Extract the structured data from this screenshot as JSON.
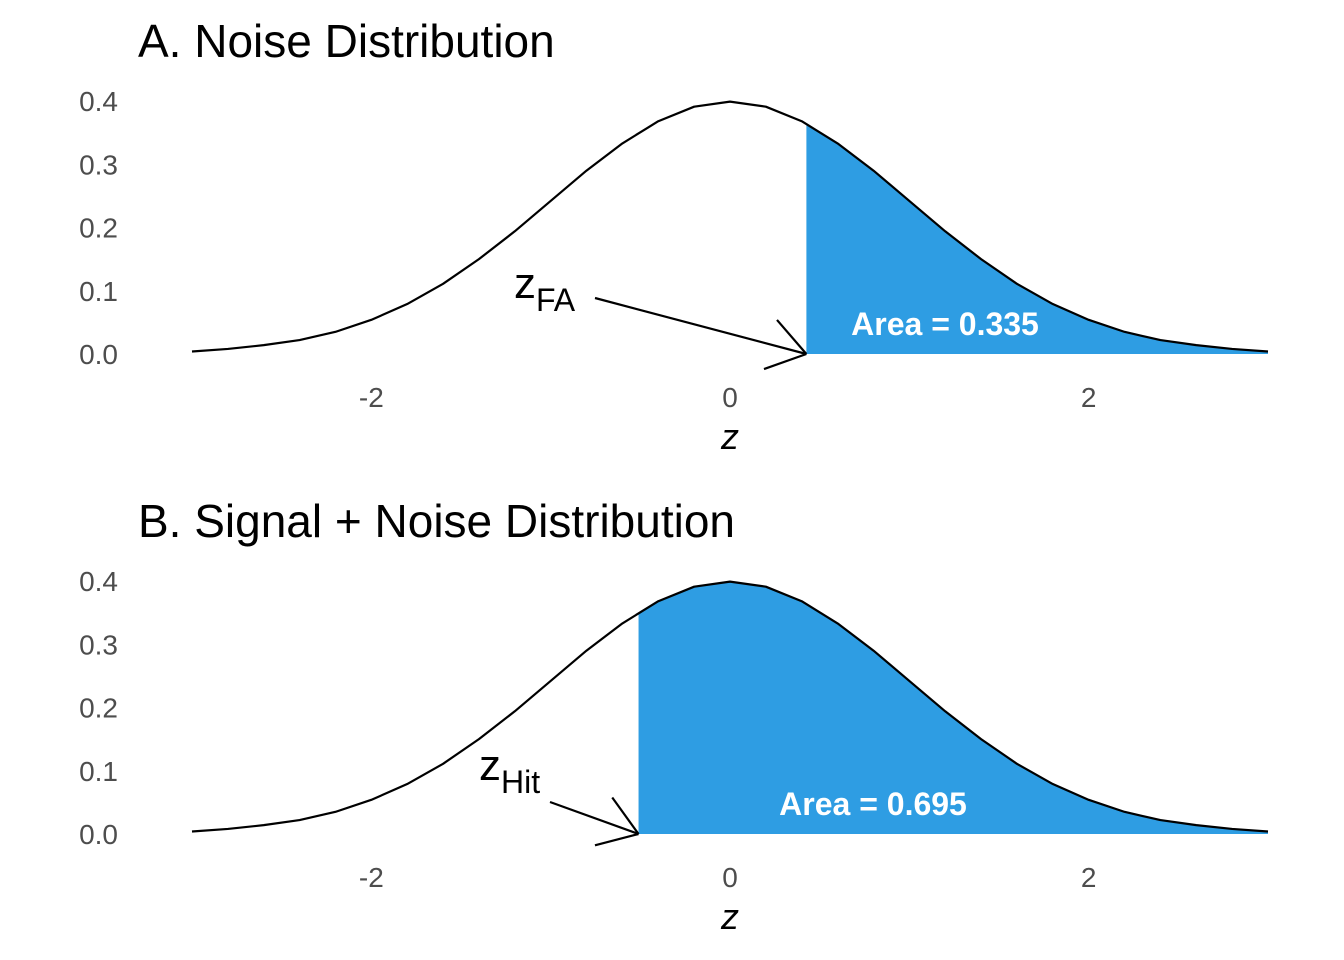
{
  "chart_data": [
    {
      "type": "area",
      "title": "A. Noise Distribution",
      "x_label": "z",
      "x": [
        -3,
        -2.8,
        -2.6,
        -2.4,
        -2.2,
        -2,
        -1.8,
        -1.6,
        -1.4,
        -1.2,
        -1,
        -0.8,
        -0.6,
        -0.4,
        -0.2,
        0,
        0.2,
        0.4,
        0.6,
        0.8,
        1,
        1.2,
        1.4,
        1.6,
        1.8,
        2,
        2.2,
        2.4,
        2.6,
        2.8,
        3
      ],
      "values": [
        0.004,
        0.008,
        0.014,
        0.022,
        0.035,
        0.054,
        0.079,
        0.111,
        0.15,
        0.194,
        0.242,
        0.29,
        0.333,
        0.368,
        0.391,
        0.399,
        0.391,
        0.368,
        0.333,
        0.29,
        0.242,
        0.194,
        0.15,
        0.111,
        0.079,
        0.054,
        0.035,
        0.022,
        0.014,
        0.008,
        0.004
      ],
      "threshold": 0.426,
      "fill_color": "#2e9de3",
      "line_color": "#000000",
      "annotation": {
        "text": "z",
        "subscript": "FA"
      },
      "area_label": "Area = 0.335",
      "xlim": [
        -3,
        3
      ],
      "ylim": [
        0,
        0.4
      ],
      "xticks": [
        -2,
        0,
        2
      ],
      "yticks": [
        {
          "value": 0,
          "label": "0.0"
        },
        0.1,
        0.2,
        0.3,
        0.4
      ],
      "grid": false
    },
    {
      "type": "area",
      "title": "B. Signal + Noise Distribution",
      "x_label": "z",
      "x": [
        -3,
        -2.8,
        -2.6,
        -2.4,
        -2.2,
        -2,
        -1.8,
        -1.6,
        -1.4,
        -1.2,
        -1,
        -0.8,
        -0.6,
        -0.4,
        -0.2,
        0,
        0.2,
        0.4,
        0.6,
        0.8,
        1,
        1.2,
        1.4,
        1.6,
        1.8,
        2,
        2.2,
        2.4,
        2.6,
        2.8,
        3
      ],
      "values": [
        0.004,
        0.008,
        0.014,
        0.022,
        0.035,
        0.054,
        0.079,
        0.111,
        0.15,
        0.194,
        0.242,
        0.29,
        0.333,
        0.368,
        0.391,
        0.399,
        0.391,
        0.368,
        0.333,
        0.29,
        0.242,
        0.194,
        0.15,
        0.111,
        0.079,
        0.054,
        0.035,
        0.022,
        0.014,
        0.008,
        0.004
      ],
      "threshold": -0.51,
      "fill_color": "#2e9de3",
      "line_color": "#000000",
      "annotation": {
        "text": "z",
        "subscript": "Hit"
      },
      "area_label": "Area = 0.695",
      "xlim": [
        -3,
        3
      ],
      "ylim": [
        0,
        0.4
      ],
      "xticks": [
        -2,
        0,
        2
      ],
      "yticks": [
        {
          "value": 0,
          "label": "0.0"
        },
        0.1,
        0.2,
        0.3,
        0.4
      ],
      "grid": false
    }
  ]
}
